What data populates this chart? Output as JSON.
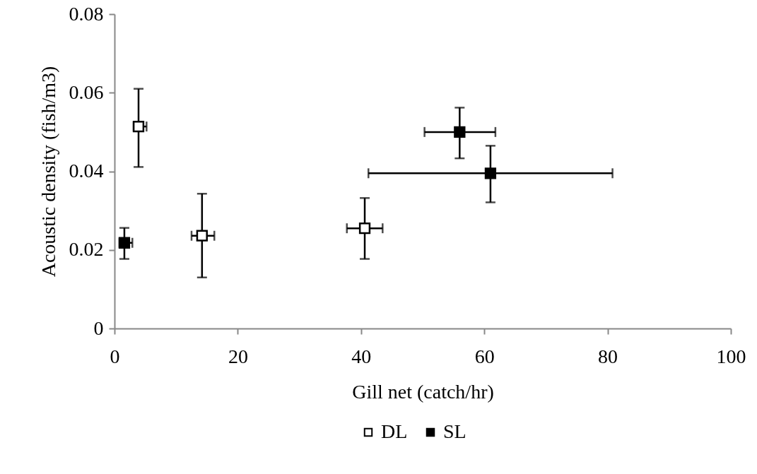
{
  "chart_data": {
    "type": "scatter",
    "xlabel": "Gill net (catch/hr)",
    "ylabel": "Acoustic density (fish/m3)",
    "xlim": [
      0,
      100
    ],
    "xticks": [
      0,
      20,
      40,
      60,
      80,
      100
    ],
    "ylim": [
      0,
      0.08
    ],
    "yticks": [
      0,
      0.02,
      0.04,
      0.06,
      0.08
    ],
    "grid": false,
    "legend": "bottom",
    "marker": "square",
    "series": [
      {
        "name": "DL",
        "color": "#ffffff",
        "x": [
          3.9,
          14.2,
          40.6
        ],
        "values": [
          0.0514,
          0.0236,
          0.0255
        ],
        "errors": [
          [
            0.0411,
            0.061
          ],
          [
            0.013,
            0.0343
          ],
          [
            0.0177,
            0.0332
          ]
        ],
        "xerrors": [
          [
            3.1,
            5.2
          ],
          [
            12.5,
            16.2
          ],
          [
            37.7,
            43.5
          ]
        ]
      },
      {
        "name": "SL",
        "color": "#000000",
        "x": [
          1.6,
          56.0,
          61.0
        ],
        "values": [
          0.0218,
          0.05,
          0.0395
        ],
        "errors": [
          [
            0.0177,
            0.0256
          ],
          [
            0.0433,
            0.0562
          ],
          [
            0.0321,
            0.0465
          ]
        ],
        "xerrors": [
          [
            0.8,
            2.9
          ],
          [
            50.3,
            61.8
          ],
          [
            41.2,
            80.8
          ]
        ]
      }
    ]
  }
}
